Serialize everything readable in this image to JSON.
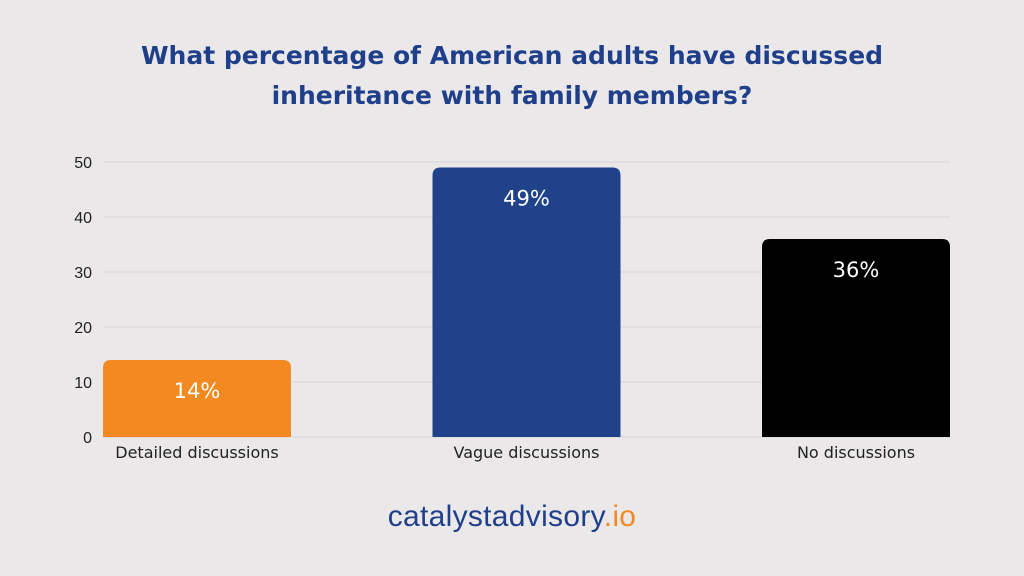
{
  "chart_data": {
    "type": "bar",
    "title_lines": [
      "What percentage of American adults have discussed",
      "inheritance with family members?"
    ],
    "categories": [
      "Detailed discussions",
      "Vague discussions",
      "No discussions"
    ],
    "values": [
      14,
      49,
      36
    ],
    "value_labels": [
      "14%",
      "49%",
      "36%"
    ],
    "colors": [
      "#f28a21",
      "#1f428b",
      "#000000"
    ],
    "ylim": [
      0,
      50
    ],
    "yticks": [
      0,
      10,
      20,
      30,
      40,
      50
    ],
    "xlabel": "",
    "ylabel": "",
    "grid": true,
    "legend": "none"
  },
  "brand": {
    "name": "catalystadvisory",
    "tld": ".io"
  }
}
